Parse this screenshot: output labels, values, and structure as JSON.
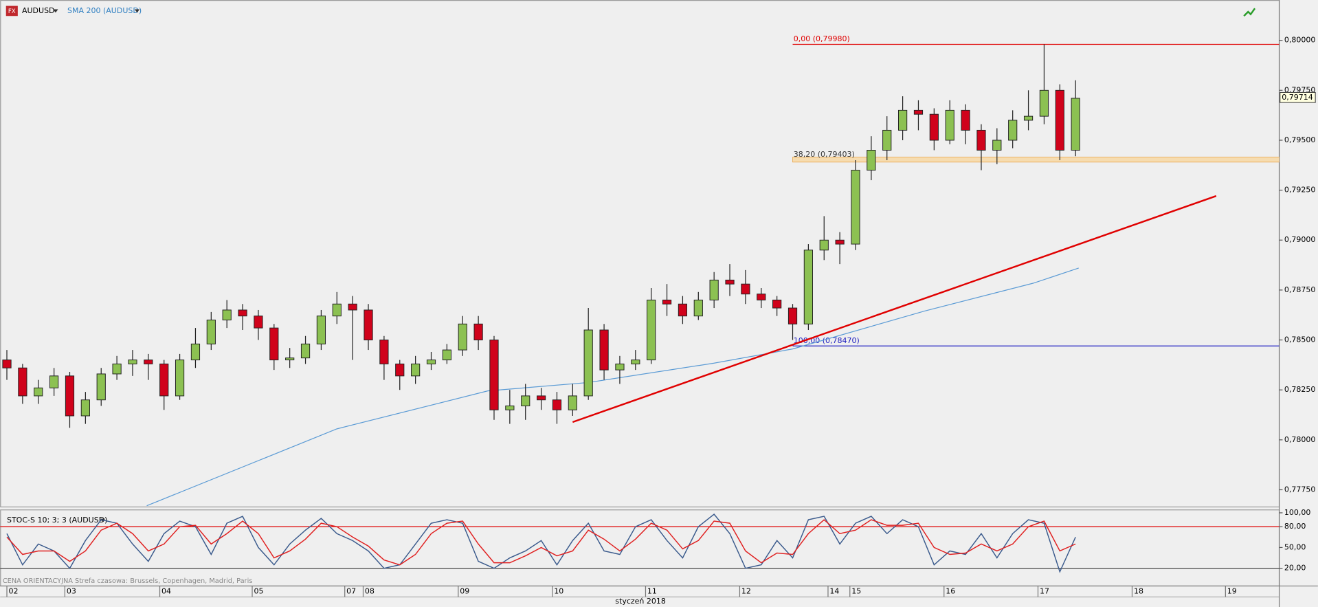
{
  "chart_data": [
    {
      "type": "candlestick",
      "symbol_badge": "FX",
      "title": "AUDUSD",
      "overlay_name": "SMA 200 (AUDUSD)",
      "x_label": "styczeń 2018",
      "up_color": "#8cc152",
      "down_color": "#d0021b",
      "x": [
        0,
        1,
        2,
        3,
        4,
        5,
        6,
        7,
        8,
        9,
        10,
        11,
        12,
        13,
        14,
        15,
        16,
        17,
        18,
        19,
        20,
        21,
        22,
        23,
        24,
        25,
        26,
        27,
        28,
        29,
        30,
        31,
        32,
        33,
        34,
        35,
        36,
        37,
        38,
        39,
        40,
        41,
        42,
        43,
        44,
        45,
        46,
        47,
        48,
        49,
        50,
        51,
        52,
        53,
        54,
        55,
        56,
        57,
        58,
        59,
        60,
        61,
        62,
        63,
        64,
        65,
        66,
        67,
        68
      ],
      "ohlc": [
        [
          0.784,
          0.7845,
          0.783,
          0.7836
        ],
        [
          0.7836,
          0.7838,
          0.7818,
          0.7822
        ],
        [
          0.7822,
          0.783,
          0.7818,
          0.7826
        ],
        [
          0.7826,
          0.7836,
          0.7822,
          0.7832
        ],
        [
          0.7832,
          0.7834,
          0.7806,
          0.7812
        ],
        [
          0.7812,
          0.7824,
          0.7808,
          0.782
        ],
        [
          0.782,
          0.7836,
          0.7817,
          0.7833
        ],
        [
          0.7833,
          0.7842,
          0.783,
          0.7838
        ],
        [
          0.7838,
          0.7845,
          0.7832,
          0.784
        ],
        [
          0.784,
          0.7843,
          0.783,
          0.7838
        ],
        [
          0.7838,
          0.784,
          0.7815,
          0.7822
        ],
        [
          0.7822,
          0.7843,
          0.782,
          0.784
        ],
        [
          0.784,
          0.7856,
          0.7836,
          0.7848
        ],
        [
          0.7848,
          0.7864,
          0.7845,
          0.786
        ],
        [
          0.786,
          0.787,
          0.7856,
          0.7865
        ],
        [
          0.7865,
          0.7868,
          0.7855,
          0.7862
        ],
        [
          0.7862,
          0.7865,
          0.785,
          0.7856
        ],
        [
          0.7856,
          0.7858,
          0.7835,
          0.784
        ],
        [
          0.784,
          0.7846,
          0.7836,
          0.7841
        ],
        [
          0.7841,
          0.7852,
          0.7838,
          0.7848
        ],
        [
          0.7848,
          0.7865,
          0.7845,
          0.7862
        ],
        [
          0.7862,
          0.7874,
          0.7858,
          0.7868
        ],
        [
          0.7868,
          0.7872,
          0.784,
          0.7865
        ],
        [
          0.7865,
          0.7868,
          0.7845,
          0.785
        ],
        [
          0.785,
          0.7852,
          0.783,
          0.7838
        ],
        [
          0.7838,
          0.784,
          0.7825,
          0.7832
        ],
        [
          0.7832,
          0.7842,
          0.7828,
          0.7838
        ],
        [
          0.7838,
          0.7844,
          0.7835,
          0.784
        ],
        [
          0.784,
          0.7848,
          0.7838,
          0.7845
        ],
        [
          0.7845,
          0.7862,
          0.7842,
          0.7858
        ],
        [
          0.7858,
          0.7862,
          0.7845,
          0.785
        ],
        [
          0.785,
          0.7852,
          0.781,
          0.7815
        ],
        [
          0.7815,
          0.7825,
          0.7808,
          0.7817
        ],
        [
          0.7817,
          0.7828,
          0.781,
          0.7822
        ],
        [
          0.7822,
          0.7826,
          0.7815,
          0.782
        ],
        [
          0.782,
          0.7824,
          0.7808,
          0.7815
        ],
        [
          0.7815,
          0.7828,
          0.7812,
          0.7822
        ],
        [
          0.7822,
          0.7866,
          0.782,
          0.7855
        ],
        [
          0.7855,
          0.7858,
          0.783,
          0.7835
        ],
        [
          0.7835,
          0.7842,
          0.7828,
          0.7838
        ],
        [
          0.7838,
          0.7845,
          0.7835,
          0.784
        ],
        [
          0.784,
          0.7876,
          0.7838,
          0.787
        ],
        [
          0.787,
          0.7878,
          0.7862,
          0.7868
        ],
        [
          0.7868,
          0.7872,
          0.7858,
          0.7862
        ],
        [
          0.7862,
          0.7874,
          0.786,
          0.787
        ],
        [
          0.787,
          0.7884,
          0.7866,
          0.788
        ],
        [
          0.788,
          0.7888,
          0.7872,
          0.7878
        ],
        [
          0.7878,
          0.7885,
          0.7868,
          0.7873
        ],
        [
          0.7873,
          0.7876,
          0.7866,
          0.787
        ],
        [
          0.787,
          0.7872,
          0.7862,
          0.7866
        ],
        [
          0.7866,
          0.7868,
          0.785,
          0.7858
        ],
        [
          0.7858,
          0.7898,
          0.7855,
          0.7895
        ],
        [
          0.7895,
          0.7912,
          0.789,
          0.79
        ],
        [
          0.79,
          0.7904,
          0.7888,
          0.7898
        ],
        [
          0.7898,
          0.794,
          0.7895,
          0.7935
        ],
        [
          0.7935,
          0.7952,
          0.793,
          0.7945
        ],
        [
          0.7945,
          0.7962,
          0.794,
          0.7955
        ],
        [
          0.7955,
          0.7972,
          0.795,
          0.7965
        ],
        [
          0.7965,
          0.797,
          0.7955,
          0.7963
        ],
        [
          0.7963,
          0.7966,
          0.7945,
          0.795
        ],
        [
          0.795,
          0.797,
          0.7948,
          0.7965
        ],
        [
          0.7965,
          0.7968,
          0.7948,
          0.7955
        ],
        [
          0.7955,
          0.7958,
          0.7935,
          0.7945
        ],
        [
          0.7945,
          0.7956,
          0.7938,
          0.795
        ],
        [
          0.795,
          0.7965,
          0.7946,
          0.796
        ],
        [
          0.796,
          0.7975,
          0.7955,
          0.7962
        ],
        [
          0.7962,
          0.7998,
          0.7958,
          0.7975
        ],
        [
          0.7975,
          0.7978,
          0.794,
          0.7945
        ],
        [
          0.7945,
          0.798,
          0.7942,
          0.7971
        ]
      ],
      "sma": {
        "color": "#5b9bd5",
        "x": [
          8.9,
          21,
          30.6,
          37,
          45,
          50,
          58.4,
          65.3,
          68.2
        ],
        "values": [
          0.7767,
          0.78055,
          0.78245,
          0.78287,
          0.78384,
          0.78455,
          0.78645,
          0.78784,
          0.7886
        ]
      },
      "trendline": {
        "color": "#e00000",
        "x": [
          36,
          76.95
        ],
        "values": [
          0.78089,
          0.79221
        ]
      },
      "fib_start": 50,
      "fib_levels": [
        {
          "label": "0,00 (0,79980)",
          "value": 0.7998,
          "color": "#e00000"
        },
        {
          "label": "38,20 (0,79403)",
          "value": 0.79403,
          "color": "#e8a040"
        },
        {
          "label": "100,00 (0,78470)",
          "value": 0.7847,
          "color": "#2020c0"
        }
      ],
      "last_price": {
        "value": 0.79714,
        "label": "0,79714"
      },
      "xlim": [
        -0.43,
        80.96
      ],
      "xticks": [
        {
          "value": 0,
          "label": "02"
        },
        {
          "value": 3.69,
          "label": "03"
        },
        {
          "value": 9.73,
          "label": "04"
        },
        {
          "value": 15.61,
          "label": "05"
        },
        {
          "value": 21.5,
          "label": "07"
        },
        {
          "value": 22.67,
          "label": "08"
        },
        {
          "value": 28.72,
          "label": "09"
        },
        {
          "value": 34.71,
          "label": "10"
        },
        {
          "value": 40.64,
          "label": "11"
        },
        {
          "value": 46.63,
          "label": "12"
        },
        {
          "value": 52.25,
          "label": "14"
        },
        {
          "value": 53.64,
          "label": "15"
        },
        {
          "value": 59.63,
          "label": "16"
        },
        {
          "value": 65.61,
          "label": "17"
        },
        {
          "value": 71.6,
          "label": "18"
        },
        {
          "value": 77.54,
          "label": "19"
        }
      ],
      "ylim": [
        0.77664,
        0.80202
      ],
      "yticks": [
        {
          "value": 0.8,
          "label": "0,80000"
        },
        {
          "value": 0.7975,
          "label": "0,79750"
        },
        {
          "value": 0.795,
          "label": "0,79500"
        },
        {
          "value": 0.7925,
          "label": "0,79250"
        },
        {
          "value": 0.79,
          "label": "0,79000"
        },
        {
          "value": 0.7875,
          "label": "0,78750"
        },
        {
          "value": 0.785,
          "label": "0,78500"
        },
        {
          "value": 0.7825,
          "label": "0,78250"
        },
        {
          "value": 0.78,
          "label": "0,78000"
        },
        {
          "value": 0.7775,
          "label": "0,77750"
        }
      ]
    },
    {
      "type": "line",
      "title": "STOC-S 10; 3; 3 (AUDUSD)",
      "footnote": "CENA ORIENTACYJNA   Strefa czasowa: Brussels, Copenhagen, Madrid, Paris",
      "series": [
        {
          "color": "#3a5a8c",
          "values": [
            70,
            25,
            55,
            45,
            20,
            60,
            90,
            85,
            55,
            30,
            70,
            88,
            80,
            40,
            85,
            95,
            50,
            25,
            55,
            75,
            92,
            70,
            60,
            45,
            20,
            25,
            55,
            85,
            90,
            85,
            30,
            20,
            35,
            45,
            60,
            25,
            60,
            85,
            45,
            40,
            80,
            90,
            60,
            35,
            80,
            98,
            70,
            20,
            25,
            60,
            35,
            90,
            95,
            55,
            85,
            95,
            70,
            90,
            80,
            25,
            45,
            40,
            70,
            35,
            70,
            90,
            85,
            15,
            65
          ]
        },
        {
          "color": "#e02020",
          "values": [
            65,
            40,
            45,
            45,
            30,
            45,
            75,
            85,
            70,
            45,
            55,
            80,
            82,
            55,
            70,
            88,
            70,
            35,
            45,
            62,
            85,
            80,
            65,
            52,
            32,
            25,
            40,
            70,
            85,
            88,
            55,
            28,
            28,
            38,
            50,
            38,
            45,
            75,
            62,
            45,
            62,
            85,
            75,
            48,
            60,
            88,
            85,
            45,
            28,
            42,
            40,
            70,
            90,
            70,
            75,
            90,
            82,
            82,
            85,
            50,
            40,
            42,
            55,
            45,
            55,
            80,
            88,
            45,
            55
          ]
        }
      ],
      "hlines": [
        {
          "value": 80,
          "color": "#e00000"
        },
        {
          "value": 20,
          "color": "#333333"
        }
      ],
      "ylim": [
        -5.5,
        104.8
      ],
      "yticks": [
        {
          "value": 100,
          "label": "100,00"
        },
        {
          "value": 80,
          "label": "80,00"
        },
        {
          "value": 50,
          "label": "50,00"
        },
        {
          "value": 20,
          "label": "20,00"
        }
      ]
    }
  ]
}
